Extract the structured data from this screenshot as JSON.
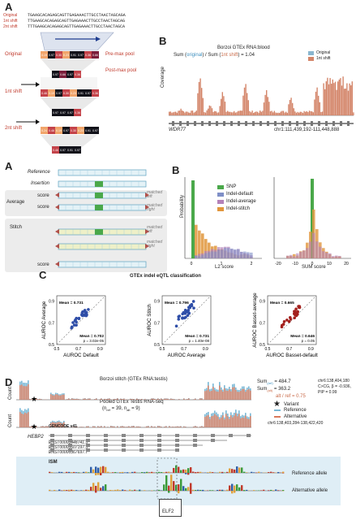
{
  "top": {
    "panel_a": "A",
    "panel_b": "B",
    "seq_labels": [
      "Original",
      "1nt shift",
      "2nt shift"
    ],
    "seqs": [
      "TGAAGCACAGAGCAGTTGAGAAACTTGCCTAACTAGCAGA",
      "TTGAAGCACAGAGCAGTTGAGAAACTTGCCTAACTAGCAG",
      "TTTGAAGCACAGAGCAGTTGAGAAACTTGCCTAACTAGCA"
    ],
    "row_labels": [
      "Original",
      "1nt shift",
      "2nt shift"
    ],
    "pool_labels": [
      "Pre-max pool",
      "Post-max pool"
    ],
    "heat_values": [
      [
        "0.19",
        "0.97",
        "0.30",
        "0.23",
        "0.91",
        "0.97",
        "0.36",
        "0.66"
      ],
      [
        "0.97",
        "0.66",
        "0.97",
        "0.36"
      ],
      [
        "0.46",
        "0.19",
        "0.97",
        "0.30",
        "0.23",
        "0.91",
        "0.97",
        "0.36"
      ],
      [
        "0.97",
        "0.97",
        "0.97",
        "0.36"
      ],
      [
        "0.24",
        "0.46",
        "0.19",
        "0.97",
        "0.30",
        "0.23",
        "0.91",
        "0.97"
      ],
      [
        "0.46",
        "0.97",
        "0.91",
        "0.97"
      ]
    ],
    "b_title": "Borzoi GTEx RNA:blood",
    "b_sum_prefix": "Sum (",
    "b_sum_orig": "original",
    "b_sum_mid": ") / Sum (",
    "b_sum_shift": "1nt shift",
    "b_sum_suffix": ") = 1.04",
    "b_legend": [
      "Original",
      "1nt shift"
    ],
    "b_ylabel": "Coverage",
    "b_gene": "WDR77",
    "b_coord": "chr1:111,439,192-111,448,888"
  },
  "bottom": {
    "panel_a": "A",
    "panel_b": "B",
    "panel_c": "C",
    "panel_d": "D",
    "ref_label": "Reference",
    "ins_label": "Insertion",
    "avg_label": "Average",
    "stitch_label": "Stitch",
    "score_label": "score",
    "matched_left": "matched left",
    "matched_right": "matched right",
    "b_ylabel": "Probability",
    "b_legend": [
      "SNP",
      "Indel-default",
      "Indel-average",
      "Indel-stitch"
    ],
    "b_xlabels": [
      "L2 score",
      "SUM score"
    ],
    "c_title": "GTEx indel eQTL classification",
    "c_plots": [
      {
        "ylabel": "AUROC Average",
        "xlabel": "AUROC Default",
        "mean_top": "Mean = 0.731",
        "mean_bot": "Mean = 0.702",
        "p": "p = 3.02e-05",
        "color": "#2f4ea8"
      },
      {
        "ylabel": "AUROC Stitch",
        "xlabel": "AUROC Average",
        "mean_top": "Mean = 0.796",
        "mean_bot": "Mean = 0.731",
        "p": "p = 1.40e-08",
        "color": "#2f4ea8"
      },
      {
        "ylabel": "AUROC Basset-average",
        "xlabel": "AUROC Basset-default",
        "mean_top": "Mean = 0.665",
        "mean_bot": "Mean = 0.646",
        "p": "p = 0.05",
        "color": "#a3211e"
      }
    ],
    "c_ticks": [
      "0.5",
      "0.7",
      "0.9"
    ],
    "d_title1": "Borzoi stitch (GTEx RNA:testis)",
    "d_title2": "Pooled GTEx Testis RNA-seq",
    "d_n": "(n",
    "d_n_ref": "ref",
    "d_n_mid": " = 39, n",
    "d_n_alt": "alt",
    "d_n_end": " = 9)",
    "d_count": "Count",
    "d_sum1_label": "Sum",
    "d_sum1_sub": "(ref)",
    "d_sum1_val": " = 484.7",
    "d_sum2_sub": "(alt)",
    "d_sum2_val": " = 363.2",
    "d_ratio": "alt / ref = 0.75",
    "d_var_info": [
      "chr6:138,404,180",
      "C>CG, β = -0.936,",
      "PIP = 0.99"
    ],
    "d_coord": "chr6:138,403,284-138,422,420",
    "d_legend": [
      "Variant",
      "Reference",
      "Alternative"
    ],
    "d_gencode": "GENCODE v41",
    "d_gene": "HEBP2",
    "d_transcripts": [
      "ENST00000448741.5",
      "ENST00000607197.5",
      "ENST00000367697.7"
    ],
    "d_ism": "ISM",
    "d_ism_ref": "Reference allele",
    "d_ism_alt": "Alternative allele",
    "d_motif": "ELF2"
  },
  "colors": {
    "panel_bg_gray": "#ececec",
    "ism_bg": "#dfeef6",
    "coverage_orig": "#8ab6cf",
    "coverage_shift": "#d4866a",
    "snp": "#4aa84a",
    "indel_default": "#7f8fc7",
    "indel_average": "#b482b9",
    "indel_stitch": "#e1963c",
    "reference": "#79b8d6",
    "alternative": "#d9795c"
  }
}
